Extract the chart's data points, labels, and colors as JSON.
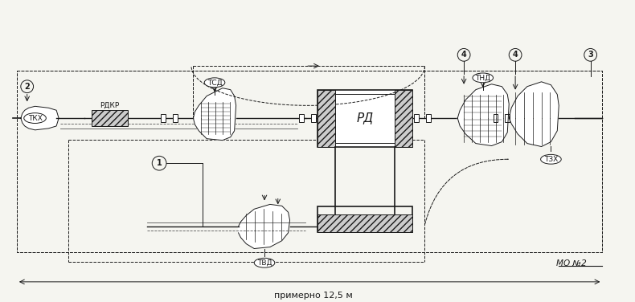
{
  "bg_color": "#f5f5f0",
  "line_color": "#1a1a1a",
  "label_color": "#1a1a1a",
  "title": "",
  "labels": {
    "TKH": "ТКХ",
    "RDKR": "РДКР",
    "TSD": "ТСД",
    "RD": "РД",
    "TND": "ТНД",
    "TVD": "ТВД",
    "TZH": "ТЗХ",
    "mo": "МО №2",
    "dim": "примерно 12,5 м",
    "num1": "1",
    "num2": "2",
    "num3": "3",
    "num4a": "4",
    "num4b": "4"
  },
  "figsize": [
    7.9,
    3.76
  ],
  "dpi": 100
}
